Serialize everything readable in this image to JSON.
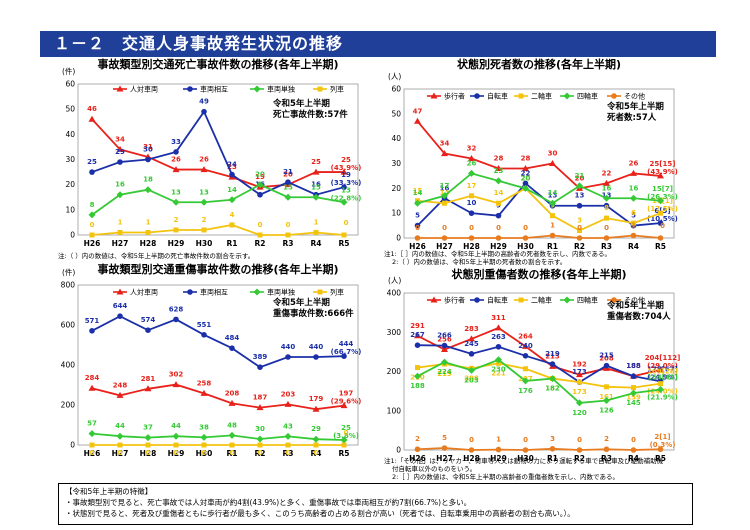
{
  "page": {
    "heading": "１－２　交通人身事故発生状況の推移"
  },
  "summary": {
    "title": "【令和5年上半期の特徴】",
    "lines": [
      "・事故類型別で見ると、死亡事故では人対車両が約4割(43.9%)と多く、重傷事故では車両相互が約7割(66.7%)と多い。",
      "・状態別で見ると、死者及び重傷者ともに歩行者が最も多く、このうち高齢者の占める割合が高い（死者では、自転車乗用中の高齢者の割合も高い。）。"
    ]
  },
  "chart_data": [
    {
      "id": "c1",
      "type": "line",
      "title": "事故類型別交通死亡事故件数の推移(各年上半期)",
      "unit": "(件)",
      "ylim": [
        0,
        60
      ],
      "yticks": [
        0,
        10,
        20,
        30,
        40,
        50,
        60
      ],
      "categories": [
        "H26",
        "H27",
        "H28",
        "H29",
        "H30",
        "R1",
        "R2",
        "R3",
        "R4",
        "R5"
      ],
      "info": [
        "令和5年上半期",
        "死亡事故件数:57件"
      ],
      "series": [
        {
          "name": "人対車両",
          "color": "#e8211a",
          "marker": "tri",
          "values": [
            46,
            34,
            31,
            26,
            26,
            23,
            19,
            20,
            25,
            25
          ],
          "last_extra": "(43.9%)"
        },
        {
          "name": "車両相互",
          "color": "#1a2fa8",
          "marker": "circle",
          "values": [
            25,
            29,
            30,
            33,
            49,
            24,
            16,
            21,
            16,
            19
          ],
          "last_extra": "(33.3%)"
        },
        {
          "name": "車両単独",
          "color": "#35c935",
          "marker": "diamond",
          "values": [
            8,
            16,
            18,
            13,
            13,
            14,
            20,
            15,
            15,
            13
          ],
          "last_extra": "(22.8%)"
        },
        {
          "name": "列車",
          "color": "#f3c30e",
          "marker": "square",
          "values": [
            0,
            1,
            1,
            2,
            2,
            4,
            0,
            0,
            1,
            0
          ],
          "last_extra": ""
        }
      ],
      "note": [
        "注:（ ）内の数値は、令和5年上半期の死亡事故件数の割合を示す。"
      ]
    },
    {
      "id": "c2",
      "type": "line",
      "title": "状態別死者数の推移(各年上半期)",
      "unit": "(人)",
      "ylim": [
        0,
        60
      ],
      "yticks": [
        0,
        10,
        20,
        30,
        40,
        50,
        60
      ],
      "categories": [
        "H26",
        "H27",
        "H28",
        "H29",
        "H30",
        "R1",
        "R2",
        "R3",
        "R4",
        "R5"
      ],
      "info": [
        "令和5年上半期",
        "死者数:57人"
      ],
      "series": [
        {
          "name": "歩行者",
          "color": "#e8211a",
          "marker": "tri",
          "values": [
            47,
            34,
            32,
            28,
            28,
            30,
            20,
            22,
            26,
            25
          ],
          "last_extra": "[15]",
          "last_extra2": "(43.9%)"
        },
        {
          "name": "自転車",
          "color": "#1a2fa8",
          "marker": "circle",
          "values": [
            5,
            16,
            10,
            9,
            22,
            13,
            13,
            13,
            5,
            6
          ],
          "last_extra": "[5]",
          "last_extra2": "(10.5%)"
        },
        {
          "name": "二輪車",
          "color": "#f3c30e",
          "marker": "square",
          "values": [
            15,
            14,
            17,
            14,
            20,
            9,
            3,
            8,
            6,
            10
          ],
          "last_extra": "[1]",
          "last_extra2": "(17.5%)"
        },
        {
          "name": "四輪車",
          "color": "#35c935",
          "marker": "diamond",
          "values": [
            14,
            17,
            26,
            23,
            20,
            14,
            21,
            16,
            16,
            15
          ],
          "last_extra": "[7]",
          "last_extra2": "(26.3%)"
        },
        {
          "name": "その他",
          "color": "#e77b1f",
          "marker": "circle",
          "values": [
            0,
            0,
            0,
            0,
            0,
            1,
            0,
            0,
            1,
            0
          ],
          "last_extra": "",
          "last_extra2": ""
        }
      ],
      "note": [
        "注1:［ ］内の数値は、令和5年上半期の高齢者の死者数を示し、内数である。",
        "2:（ ）内の数値は、令和5年上半期の死者数の割合を示す。"
      ]
    },
    {
      "id": "c3",
      "type": "line",
      "title": "事故類型別交通重傷事故件数の推移(各年上半期)",
      "unit": "(件)",
      "ylim": [
        0,
        800
      ],
      "yticks": [
        0,
        200,
        400,
        600,
        800
      ],
      "categories": [
        "H26",
        "H27",
        "H28",
        "H29",
        "H30",
        "R1",
        "R2",
        "R3",
        "R4",
        "R5"
      ],
      "info": [
        "令和5年上半期",
        "重傷事故件数:666件"
      ],
      "series": [
        {
          "name": "人対車両",
          "color": "#e8211a",
          "marker": "tri",
          "values": [
            284,
            248,
            281,
            302,
            258,
            208,
            187,
            203,
            179,
            197
          ],
          "last_extra": "(29.6%)"
        },
        {
          "name": "車両相互",
          "color": "#1a2fa8",
          "marker": "circle",
          "values": [
            571,
            644,
            574,
            628,
            551,
            484,
            389,
            440,
            440,
            444
          ],
          "last_extra": "(66.7%)"
        },
        {
          "name": "車両単独",
          "color": "#35c935",
          "marker": "diamond",
          "values": [
            57,
            44,
            37,
            44,
            38,
            48,
            30,
            43,
            29,
            25
          ],
          "last_extra": "(3.8%)"
        },
        {
          "name": "列車",
          "color": "#f3c30e",
          "marker": "square",
          "values": [
            0,
            0,
            0,
            0,
            0,
            0,
            0,
            0,
            0,
            0
          ],
          "last_extra": ""
        }
      ],
      "note": []
    },
    {
      "id": "c4",
      "type": "line",
      "title": "状態別重傷者数の推移(各年上半期)",
      "unit": "(人)",
      "ylim": [
        0,
        400
      ],
      "yticks": [
        0,
        100,
        200,
        300,
        400
      ],
      "categories": [
        "H26",
        "H27",
        "H28",
        "H29",
        "H30",
        "R1",
        "R2",
        "R3",
        "R4",
        "R5"
      ],
      "info": [
        "令和5年上半期",
        "重傷者数:704人"
      ],
      "series": [
        {
          "name": "歩行者",
          "color": "#e8211a",
          "marker": "tri",
          "values": [
            291,
            256,
            283,
            311,
            264,
            213,
            192,
            208,
            188,
            204
          ],
          "last_extra": "[112]",
          "last_extra2": "(29.0%)"
        },
        {
          "name": "自転車",
          "color": "#1a2fa8",
          "marker": "circle",
          "values": [
            267,
            266,
            245,
            263,
            240,
            219,
            173,
            215,
            188,
            175
          ],
          "last_extra": "[67]",
          "last_extra2": "(24.9%)"
        },
        {
          "name": "二輪車",
          "color": "#f3c30e",
          "marker": "square",
          "values": [
            210,
            219,
            208,
            221,
            207,
            182,
            173,
            161,
            159,
            169
          ],
          "last_extra": "[28]",
          "last_extra2": "(24.0%)"
        },
        {
          "name": "四輪車",
          "color": "#35c935",
          "marker": "diamond",
          "values": [
            188,
            224,
            203,
            230,
            176,
            182,
            120,
            126,
            145,
            154
          ],
          "last_extra": "[42]",
          "last_extra2": "(21.9%)"
        },
        {
          "name": "その他",
          "color": "#e77b1f",
          "marker": "circle",
          "values": [
            2,
            5,
            0,
            1,
            0,
            3,
            0,
            2,
            0,
            2
          ],
          "last_extra": "[1]",
          "last_extra2": "(0.3%)"
        }
      ],
      "note": [
        "注1:「その他」は、リヤカー、荷車等人又は動物の力により運転する車で自転車及び駆動補助機",
        "付自転車以外のものをいう。",
        "2:［ ］内の数値は、令和5年上半期の高齢者の重傷者数を示し、内数である。"
      ]
    }
  ]
}
